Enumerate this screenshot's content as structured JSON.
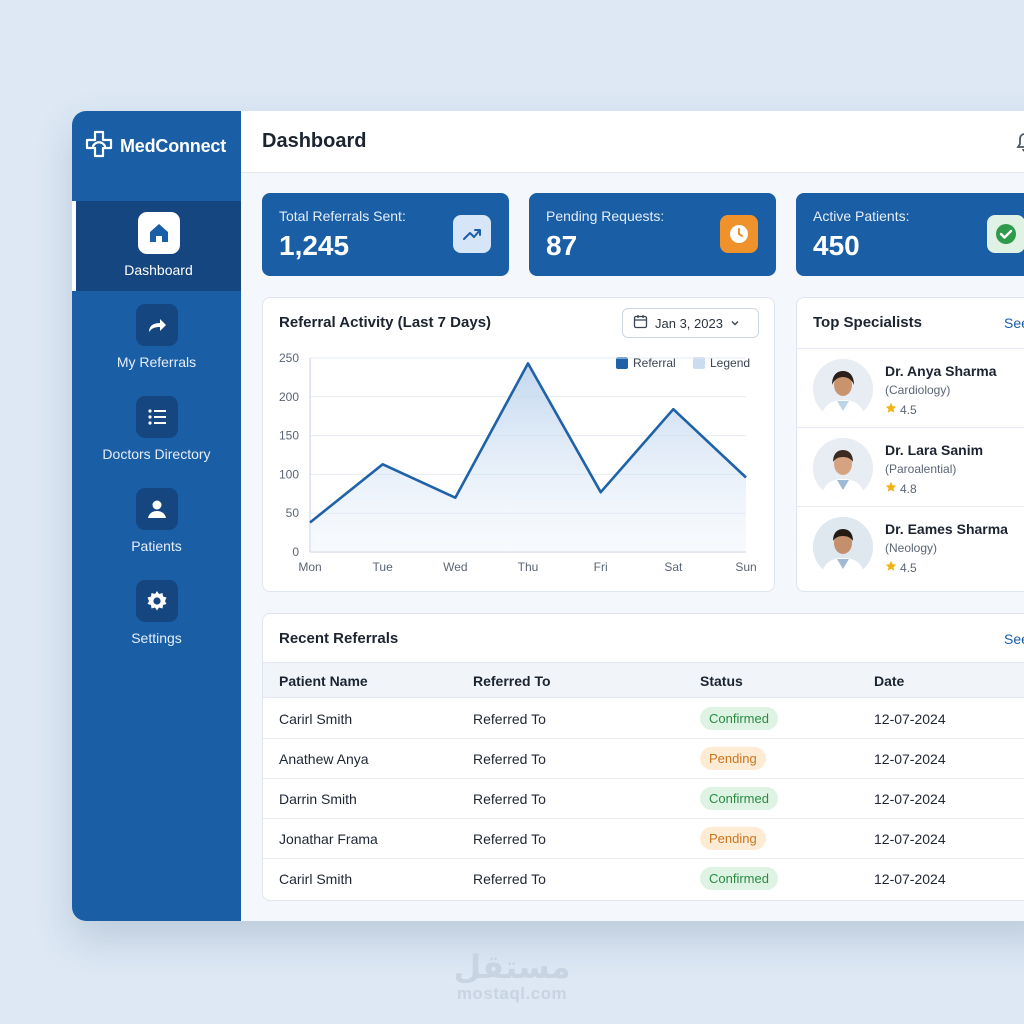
{
  "brand": {
    "name": "MedConnect"
  },
  "sidebar": {
    "items": [
      {
        "label": "Dashboard",
        "icon": "home-icon",
        "active": true
      },
      {
        "label": "My Referrals",
        "icon": "share-arrow-icon"
      },
      {
        "label": "Doctors Directory",
        "icon": "list-icon"
      },
      {
        "label": "Patients",
        "icon": "user-icon"
      },
      {
        "label": "Settings",
        "icon": "gear-icon"
      }
    ]
  },
  "header": {
    "title": "Dashboard",
    "icon": "bell-icon"
  },
  "stats": [
    {
      "label": "Total Referrals Sent:",
      "value": "1,245",
      "icon": "trend-up-icon",
      "icon_bg": "#d6e6f8"
    },
    {
      "label": "Pending Requests:",
      "value": "87",
      "icon": "clock-icon",
      "icon_bg": "#f0922b"
    },
    {
      "label": "Active Patients:",
      "value": "450",
      "icon": "check-icon",
      "icon_bg": "#dff2e3"
    }
  ],
  "activity": {
    "title": "Referral Activity (Last 7 Days)",
    "date_filter": "Jan 3, 2023",
    "legend": [
      "Referral",
      "Legend"
    ]
  },
  "chart_data": {
    "type": "area",
    "categories": [
      "Mon",
      "Tue",
      "Wed",
      "Thu",
      "Fri",
      "Sat",
      "Sun"
    ],
    "series": [
      {
        "name": "Referral",
        "values": [
          38,
          113,
          70,
          243,
          77,
          184,
          96
        ]
      }
    ],
    "title": "Referral Activity (Last 7 Days)",
    "xlabel": "",
    "ylabel": "",
    "ylim": [
      0,
      250
    ],
    "yticks": [
      0,
      50,
      100,
      150,
      200,
      250
    ],
    "grid": true,
    "legend_position": "top-right",
    "colors": {
      "line": "#1f62a8",
      "fill": "#c9dcf0"
    }
  },
  "specialists": {
    "title": "Top Specialists",
    "see_all": "See",
    "items": [
      {
        "name": "Dr. Anya Sharma",
        "field": "(Cardiology)",
        "rating": "4.5"
      },
      {
        "name": "Dr. Lara Sanim",
        "field": "(Paroalential)",
        "rating": "4.8"
      },
      {
        "name": "Dr. Eames Sharma",
        "field": "(Neology)",
        "rating": "4.5"
      }
    ]
  },
  "recent": {
    "title": "Recent Referrals",
    "see_all": "See",
    "columns": [
      "Patient Name",
      "Referred To",
      "Status",
      "Date"
    ],
    "rows": [
      {
        "patient": "Carirl Smith",
        "referred_to": "Referred To",
        "status": "Confirmed",
        "date": "12-07-2024"
      },
      {
        "patient": "Anathew Anya",
        "referred_to": "Referred To",
        "status": "Pending",
        "date": "12-07-2024"
      },
      {
        "patient": "Darrin Smith",
        "referred_to": "Referred To",
        "status": "Confirmed",
        "date": "12-07-2024"
      },
      {
        "patient": "Jonathar Frama",
        "referred_to": "Referred To",
        "status": "Pending",
        "date": "12-07-2024"
      },
      {
        "patient": "Carirl Smith",
        "referred_to": "Referred To",
        "status": "Confirmed",
        "date": "12-07-2024"
      }
    ]
  },
  "watermark": {
    "arabic": "مستقل",
    "latin": "mostaql.com"
  }
}
